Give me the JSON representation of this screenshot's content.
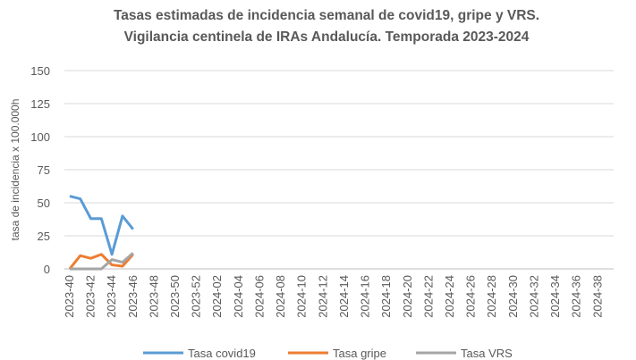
{
  "chart_data": {
    "type": "line",
    "title": [
      "Tasas estimadas de incidencia semanal de covid19, gripe y VRS.",
      "Vigilancia centinela de IRAs Andalucía. Temporada 2023-2024"
    ],
    "y_label": "tasa de incidencia x 100.000h",
    "categories": [
      "2023-40",
      null,
      "2023-42",
      null,
      "2023-44",
      null,
      "2023-46",
      null,
      "2023-48",
      null,
      "2023-50",
      null,
      "2023-52",
      null,
      "2024-02",
      null,
      "2024-04",
      null,
      "2024-06",
      null,
      "2024-08",
      null,
      "2024-10",
      null,
      "2024-12",
      null,
      "2024-14",
      null,
      "2024-16",
      null,
      "2024-18",
      null,
      "2024-20",
      null,
      "2024-22",
      null,
      "2024-24",
      null,
      "2024-26",
      null,
      "2024-28",
      null,
      "2024-30",
      null,
      "2024-32",
      null,
      "2024-34",
      null,
      "2024-36",
      null,
      "2024-38",
      null
    ],
    "series": [
      {
        "name": "Tasa covid19",
        "color": "#5b9bd5",
        "values": [
          55,
          53,
          38,
          38,
          11,
          40,
          30,
          null,
          null,
          null,
          null,
          null,
          null,
          null,
          null,
          null,
          null,
          null,
          null,
          null,
          null,
          null,
          null,
          null,
          null,
          null,
          null,
          null,
          null,
          null,
          null,
          null,
          null,
          null,
          null,
          null,
          null,
          null,
          null,
          null,
          null,
          null,
          null,
          null,
          null,
          null,
          null,
          null,
          null,
          null,
          null,
          null
        ]
      },
      {
        "name": "Tasa gripe",
        "color": "#ed7d31",
        "values": [
          0,
          10,
          8,
          11,
          3,
          2,
          11,
          null,
          null,
          null,
          null,
          null,
          null,
          null,
          null,
          null,
          null,
          null,
          null,
          null,
          null,
          null,
          null,
          null,
          null,
          null,
          null,
          null,
          null,
          null,
          null,
          null,
          null,
          null,
          null,
          null,
          null,
          null,
          null,
          null,
          null,
          null,
          null,
          null,
          null,
          null,
          null,
          null,
          null,
          null,
          null,
          null
        ]
      },
      {
        "name": "Tasa VRS",
        "color": "#a5a5a5",
        "values": [
          0,
          0,
          0,
          0,
          7,
          5,
          12,
          null,
          null,
          null,
          null,
          null,
          null,
          null,
          null,
          null,
          null,
          null,
          null,
          null,
          null,
          null,
          null,
          null,
          null,
          null,
          null,
          null,
          null,
          null,
          null,
          null,
          null,
          null,
          null,
          null,
          null,
          null,
          null,
          null,
          null,
          null,
          null,
          null,
          null,
          null,
          null,
          null,
          null,
          null,
          null,
          null
        ]
      }
    ],
    "ylim": [
      0,
      150
    ],
    "yticks": [
      0,
      25,
      50,
      75,
      100,
      125,
      150
    ],
    "grid": true,
    "legend": "bottom"
  }
}
